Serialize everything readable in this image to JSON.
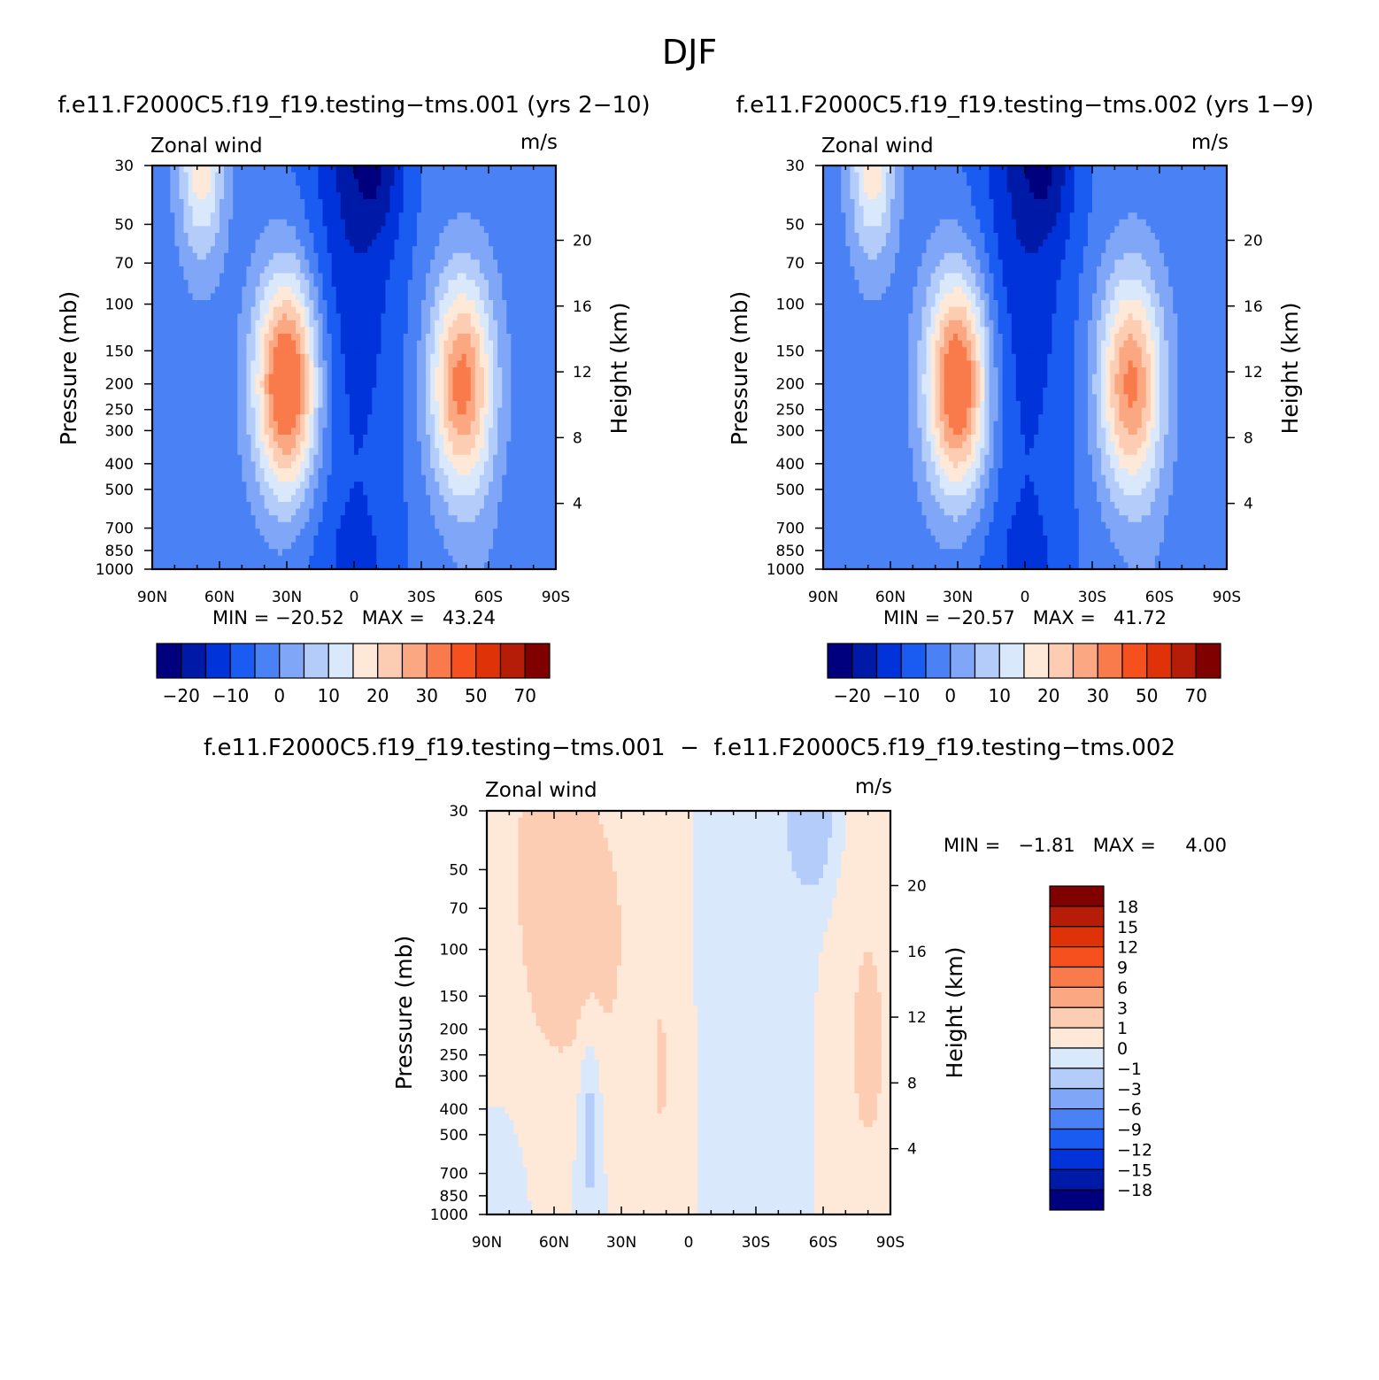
{
  "title": "DJF",
  "panels": [
    {
      "title": "f.e11.F2000C5.f19_f19.testing−tms.001 (yrs 2−10)",
      "left_label": "Zonal wind",
      "right_label": "m/s",
      "ylabel": "Pressure (mb)",
      "y2label": "Height (km)",
      "min_max": "MIN = −20.52   MAX =   43.24"
    },
    {
      "title": "f.e11.F2000C5.f19_f19.testing−tms.002 (yrs 1−9)",
      "left_label": "Zonal wind",
      "right_label": "m/s",
      "ylabel": "Pressure (mb)",
      "y2label": "Height (km)",
      "min_max": "MIN = −20.57   MAX =   41.72"
    },
    {
      "title": "f.e11.F2000C5.f19_f19.testing−tms.001  −  f.e11.F2000C5.f19_f19.testing−tms.002",
      "left_label": "Zonal wind",
      "right_label": "m/s",
      "ylabel": "Pressure (mb)",
      "y2label": "Height (km)",
      "min_max": "MIN =   −1.81   MAX =     4.00"
    }
  ],
  "colors": {
    "top_levels": [
      "#00007f",
      "#001aa8",
      "#0033d9",
      "#1a5cf2",
      "#4a82f5",
      "#80a6f7",
      "#b3ccf9",
      "#d9e8fb",
      "#fee8d8",
      "#fdcdb3",
      "#fba882",
      "#f97a4a",
      "#f5501e",
      "#e03208",
      "#b51d08",
      "#800000"
    ],
    "diff_levels": [
      "#00007f",
      "#001aa8",
      "#0033d9",
      "#1a5cf2",
      "#4a82f5",
      "#80a6f7",
      "#b3ccf9",
      "#d9e8fb",
      "#fee8d8",
      "#fdcdb3",
      "#fba882",
      "#f97a4a",
      "#f5501e",
      "#e03208",
      "#b51d08",
      "#800000"
    ]
  },
  "chart_data": [
    {
      "type": "heatmap",
      "title": "f.e11.F2000C5.f19_f19.testing−tms.001 (yrs 2−10)",
      "xlabel": "",
      "ylabel": "Pressure (mb)",
      "y2label": "Height (km)",
      "x_ticks": [
        "90N",
        "60N",
        "30N",
        "0",
        "30S",
        "60S",
        "90S"
      ],
      "y_ticks": [
        "30",
        "50",
        "70",
        "100",
        "150",
        "200",
        "250",
        "300",
        "400",
        "500",
        "700",
        "850",
        "1000"
      ],
      "y2_ticks": [
        "20",
        "16",
        "12",
        "8",
        "4"
      ],
      "y_scale": "log",
      "ylim": [
        1000,
        30
      ],
      "xlim": [
        "90N",
        "90S"
      ],
      "contour_levels": [
        -25,
        -20,
        -15,
        -10,
        -5,
        0,
        5,
        10,
        15,
        20,
        25,
        30,
        40,
        50,
        60,
        70,
        80
      ],
      "colorbar_labels": [
        "−20",
        "−10",
        "0",
        "10",
        "20",
        "30",
        "50",
        "70"
      ],
      "min": -20.52,
      "max": 43.24,
      "jets": [
        {
          "lat": 30,
          "p": 200,
          "max": 43.24
        },
        {
          "lat": -48,
          "p": 200,
          "max": 35
        }
      ]
    },
    {
      "type": "heatmap",
      "title": "f.e11.F2000C5.f19_f19.testing−tms.002 (yrs 1−9)",
      "xlabel": "",
      "ylabel": "Pressure (mb)",
      "y2label": "Height (km)",
      "x_ticks": [
        "90N",
        "60N",
        "30N",
        "0",
        "30S",
        "60S",
        "90S"
      ],
      "y_ticks": [
        "30",
        "50",
        "70",
        "100",
        "150",
        "200",
        "250",
        "300",
        "400",
        "500",
        "700",
        "850",
        "1000"
      ],
      "y2_ticks": [
        "20",
        "16",
        "12",
        "8",
        "4"
      ],
      "y_scale": "log",
      "ylim": [
        1000,
        30
      ],
      "xlim": [
        "90N",
        "90S"
      ],
      "contour_levels": [
        -25,
        -20,
        -15,
        -10,
        -5,
        0,
        5,
        10,
        15,
        20,
        25,
        30,
        40,
        50,
        60,
        70,
        80
      ],
      "colorbar_labels": [
        "−20",
        "−10",
        "0",
        "10",
        "20",
        "30",
        "50",
        "70"
      ],
      "min": -20.57,
      "max": 41.72,
      "jets": [
        {
          "lat": 30,
          "p": 200,
          "max": 41.72
        },
        {
          "lat": -47,
          "p": 200,
          "max": 34
        }
      ]
    },
    {
      "type": "heatmap",
      "title": "f.e11.F2000C5.f19_f19.testing−tms.001  −  f.e11.F2000C5.f19_f19.testing−tms.002",
      "xlabel": "",
      "ylabel": "Pressure (mb)",
      "y2label": "Height (km)",
      "x_ticks": [
        "90N",
        "60N",
        "30N",
        "0",
        "30S",
        "60S",
        "90S"
      ],
      "y_ticks": [
        "30",
        "50",
        "70",
        "100",
        "150",
        "200",
        "250",
        "300",
        "400",
        "500",
        "700",
        "850",
        "1000"
      ],
      "y2_ticks": [
        "20",
        "16",
        "12",
        "8",
        "4"
      ],
      "y_scale": "log",
      "ylim": [
        1000,
        30
      ],
      "xlim": [
        "90N",
        "90S"
      ],
      "contour_levels": [
        -21,
        -18,
        -15,
        -12,
        -9,
        -6,
        -3,
        -1,
        0,
        1,
        3,
        6,
        9,
        12,
        15,
        18,
        21
      ],
      "colorbar_labels": [
        "18",
        "15",
        "12",
        "9",
        "6",
        "3",
        "1",
        "0",
        "−1",
        "−3",
        "−6",
        "−9",
        "−12",
        "−15",
        "−18"
      ],
      "min": -1.81,
      "max": 4.0
    }
  ]
}
